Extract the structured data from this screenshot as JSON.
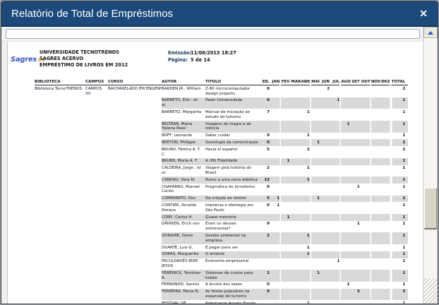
{
  "window": {
    "title": "Relatório de Total de Empréstimos",
    "close_glyph": "✕"
  },
  "toolbar": {
    "field_value": ""
  },
  "scrollbar": {
    "up_glyph": "▲"
  },
  "colors": {
    "titlebar": "#1b4a7b",
    "row_shade": "#d9d9d9",
    "logo_blue": "#3457c4",
    "logo_orange": "#e09a3c",
    "meta_label": "#17365d"
  },
  "report": {
    "logo": {
      "text": "Sagres",
      "version": "2.0"
    },
    "org_lines": [
      "UNIVERSIDADE TECNOTRENDS",
      "SAGRES ACERVO",
      "EMPRÉSTIMO DE LIVROS EM 2012"
    ],
    "meta": {
      "emissao_label": "Emissão:",
      "emissao_value": "11/06/2013 18:27",
      "pagina_label": "Página:",
      "pagina_value": "5 de 14"
    },
    "table": {
      "columns": [
        "BIBLIOTECA",
        "CAMPUS",
        "CURSO",
        "AUTOR",
        "TITULO",
        "ED.",
        "JAN",
        "FEV",
        "MAR",
        "ABR",
        "MAI",
        "JUN",
        "JUL",
        "AGO",
        "SET",
        "OUT",
        "NOV",
        "DEZ",
        "TOTAL"
      ],
      "rows": [
        {
          "biblioteca": "Biblioteca TecnoTRENDS",
          "campus": "CAMPUS XV",
          "curso": "BACHARELADO EM ENGENHARIA DE AUT",
          "autor": "BARDEN JR., William",
          "titulo": "Z-80 microcomputador design projects",
          "ed": "0",
          "months": [
            "",
            "",
            "",
            "",
            "",
            "2",
            "",
            "",
            "",
            "",
            "",
            ""
          ],
          "total": "2"
        },
        {
          "biblioteca": "",
          "campus": "",
          "curso": "",
          "autor": "BARRETO, Elói ; et. al.",
          "titulo": "Fazer Universidade",
          "ed": "6",
          "months": [
            "",
            "",
            "",
            "",
            "",
            "",
            "1",
            "",
            "",
            "",
            "",
            ""
          ],
          "total": "1"
        },
        {
          "biblioteca": "",
          "campus": "",
          "curso": "",
          "autor": "BARRETO, Margarita",
          "titulo": "Manual de iniciação ao estudo do turismo",
          "ed": "7",
          "months": [
            "",
            "",
            "",
            "1",
            "",
            "",
            "",
            "",
            "",
            "",
            "",
            ""
          ],
          "total": "1"
        },
        {
          "biblioteca": "",
          "campus": "",
          "curso": "",
          "autor": "BELTRAN, Maria Helena Roxo",
          "titulo": "Imagens de magia e de ciência",
          "ed": "",
          "months": [
            "",
            "",
            "",
            "",
            "",
            "",
            "",
            "1",
            "",
            "",
            "",
            ""
          ],
          "total": "1"
        },
        {
          "biblioteca": "",
          "campus": "",
          "curso": "",
          "autor": "BOFF, Leonardo",
          "titulo": "Saber cuidar",
          "ed": "9",
          "months": [
            "",
            "",
            "",
            "1",
            "",
            "",
            "",
            "",
            "",
            "",
            "",
            ""
          ],
          "total": "1"
        },
        {
          "biblioteca": "",
          "campus": "",
          "curso": "",
          "autor": "BRETON, Philippe",
          "titulo": "Sociologia da comunicação",
          "ed": "0",
          "months": [
            "",
            "",
            "",
            "",
            "1",
            "",
            "",
            "",
            "",
            "",
            "",
            ""
          ],
          "total": "1"
        },
        {
          "biblioteca": "",
          "campus": "",
          "curso": "",
          "autor": "BRUNO, Fátima A. T. C.",
          "titulo": "Hacia el español",
          "ed": "5",
          "months": [
            "",
            "",
            "",
            "2",
            "",
            "",
            "",
            "",
            "",
            "",
            "",
            ""
          ],
          "total": "2"
        },
        {
          "biblioteca": "",
          "campus": "",
          "curso": "",
          "autor": "BRUNS, Maria A. T.",
          "titulo": "A (IN) Fidelidade",
          "ed": "",
          "months": [
            "",
            "1",
            "",
            "",
            "",
            "",
            "",
            "",
            "",
            "",
            "",
            ""
          ],
          "total": "1"
        },
        {
          "biblioteca": "",
          "campus": "",
          "curso": "",
          "autor": "CALDEIRA, Jorge ; et al.",
          "titulo": "Viagem pela história do Brasil",
          "ed": "2",
          "months": [
            "",
            "",
            "",
            "1",
            "",
            "",
            "",
            "",
            "",
            "",
            "",
            ""
          ],
          "total": "1"
        },
        {
          "biblioteca": "",
          "campus": "",
          "curso": "",
          "autor": "CANDAU, Vera M.",
          "titulo": "Rumo a uma nova didática",
          "ed": "13",
          "months": [
            "",
            "",
            "",
            "1",
            "",
            "",
            "",
            "",
            "",
            "",
            "",
            ""
          ],
          "total": "1"
        },
        {
          "biblioteca": "",
          "campus": "",
          "curso": "",
          "autor": "CHAPARRO, Manoel Carlos",
          "titulo": "Pragmática do jornalismo",
          "ed": "0",
          "months": [
            "",
            "",
            "",
            "",
            "",
            "",
            "",
            "",
            "1",
            "",
            "",
            ""
          ],
          "total": "1"
        },
        {
          "biblioteca": "",
          "campus": "",
          "curso": "",
          "autor": "COMPARATO, Doc",
          "titulo": "Da criação ao roteiro",
          "ed": "5",
          "months": [
            "1",
            "",
            "",
            "",
            "1",
            "",
            "",
            "",
            "",
            "",
            "",
            ""
          ],
          "total": "2"
        },
        {
          "biblioteca": "",
          "campus": "",
          "curso": "",
          "autor": "CONTIER, Arnaldo Daraya",
          "titulo": "Imprensa e ideologia em São Paulo",
          "ed": "0",
          "months": [
            "1",
            "",
            "",
            "",
            "",
            "",
            "",
            "",
            "",
            "",
            "",
            ""
          ],
          "total": "1"
        },
        {
          "biblioteca": "",
          "campus": "",
          "curso": "",
          "autor": "CONY, Carlos H.",
          "titulo": "Quase memória",
          "ed": "",
          "months": [
            "",
            "1",
            "",
            "",
            "",
            "",
            "",
            "",
            "",
            "",
            "",
            ""
          ],
          "total": "1"
        },
        {
          "biblioteca": "",
          "campus": "",
          "curso": "",
          "autor": "DÄNIKEN, Erich von",
          "titulo": "Eram os deuses astronautas?",
          "ed": "9",
          "months": [
            "",
            "",
            "",
            "",
            "",
            "",
            "",
            "",
            "1",
            "",
            "",
            ""
          ],
          "total": "1"
        },
        {
          "biblioteca": "",
          "campus": "",
          "curso": "",
          "autor": "DONAIRE, Denis",
          "titulo": "Gestão ambiental na empresa",
          "ed": "2",
          "months": [
            "",
            "",
            "",
            "1",
            "",
            "",
            "",
            "",
            "",
            "",
            "",
            ""
          ],
          "total": "1"
        },
        {
          "biblioteca": "",
          "campus": "",
          "curso": "",
          "autor": "DUARTE, Luiz G.",
          "titulo": "É pagar para ver",
          "ed": "",
          "months": [
            "",
            "",
            "",
            "1",
            "",
            "",
            "",
            "",
            "",
            "",
            "",
            ""
          ],
          "total": "1"
        },
        {
          "biblioteca": "",
          "campus": "",
          "curso": "",
          "autor": "DURAS, Marguerite",
          "titulo": "O amante",
          "ed": "",
          "months": [
            "",
            "",
            "",
            "1",
            "",
            "",
            "",
            "",
            "",
            "",
            "",
            ""
          ],
          "total": "1"
        },
        {
          "biblioteca": "",
          "campus": "",
          "curso": "",
          "autor": "FACULDADES BOM JESUS",
          "titulo": "Economia empresarial",
          "ed": "",
          "months": [
            "",
            "",
            "",
            "",
            "",
            "",
            "1",
            "",
            "",
            "",
            "",
            ""
          ],
          "total": "1"
        },
        {
          "biblioteca": "",
          "campus": "",
          "curso": "",
          "autor": "FEMENICK, Tomislav R.",
          "titulo": "Sistemas de custos para hotéis",
          "ed": "2",
          "months": [
            "",
            "",
            "",
            "",
            "1",
            "",
            "",
            "",
            "",
            "",
            "",
            ""
          ],
          "total": "1"
        },
        {
          "biblioteca": "",
          "campus": "",
          "curso": "",
          "autor": "FERNANDO, Santos",
          "titulo": "A árvore dos sexos",
          "ed": "0",
          "months": [
            "",
            "",
            "",
            "",
            "",
            "",
            "",
            "1",
            "",
            "",
            "",
            ""
          ],
          "total": "1"
        },
        {
          "biblioteca": "",
          "campus": "",
          "curso": "",
          "autor": "FERREIRA, Maria N.",
          "titulo": "As festas populares na expansão do turismo",
          "ed": "0",
          "months": [
            "",
            "",
            "",
            "",
            "",
            "",
            "",
            "",
            "3",
            "",
            "",
            ""
          ],
          "total": "3"
        },
        {
          "biblioteca": "",
          "campus": "",
          "curso": "",
          "autor": "FESTIVAL DE GRAMADO, 14",
          "titulo": "Palestrante Angelo Frazão",
          "ed": "",
          "months": [
            "",
            "",
            "",
            "1",
            "",
            "",
            "",
            "",
            "",
            "",
            "",
            ""
          ],
          "total": "1"
        },
        {
          "biblioteca": "",
          "campus": "",
          "curso": "",
          "autor": "",
          "titulo": "Palestrante Nizan Guanaes",
          "ed": "",
          "months": [
            "",
            "",
            "1",
            "",
            "",
            "",
            "",
            "",
            "",
            "",
            "",
            ""
          ],
          "total": "1"
        }
      ]
    }
  }
}
